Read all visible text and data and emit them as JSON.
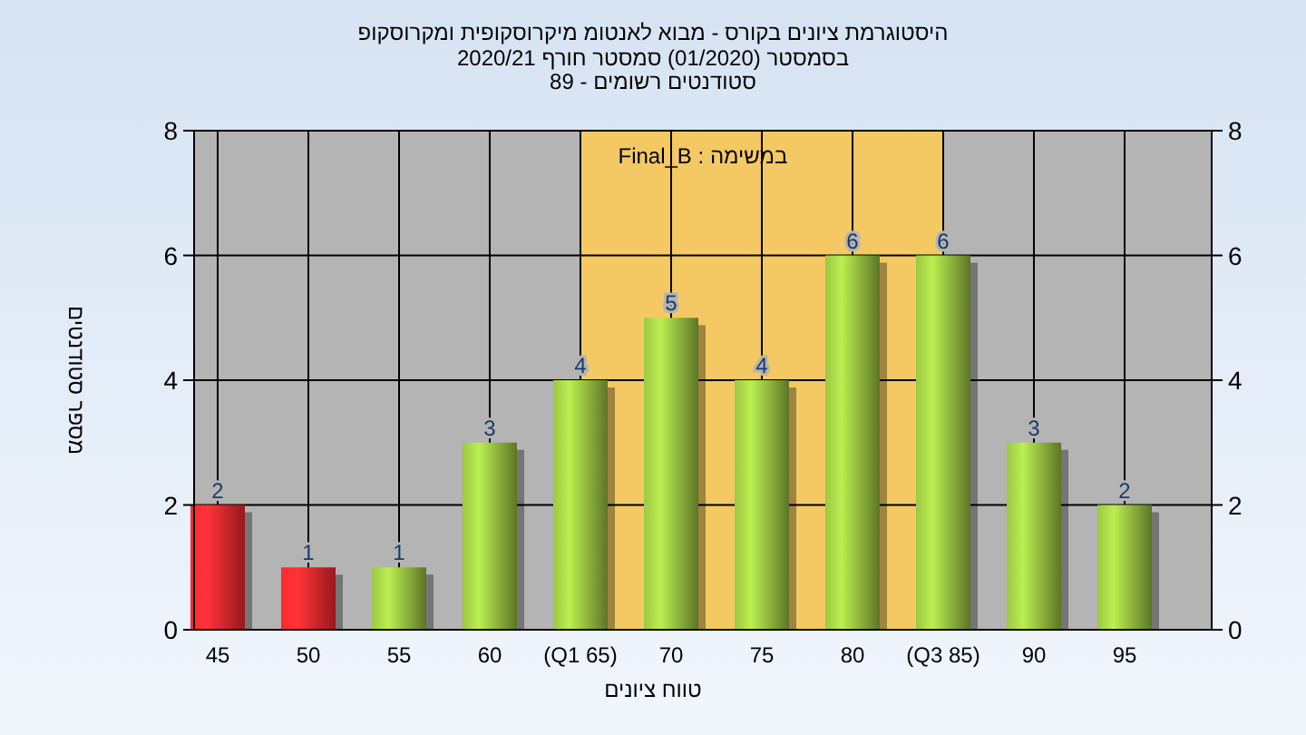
{
  "chart_data": {
    "type": "bar",
    "title": "היסטוגרמת ציונים בקורס - מבוא לאנטומ מיקרוסקופית ומקרוסקופ",
    "subtitle": "בסמסטר (01/2020) סמסטר חורף 2020/21\nסטודנטים רשומים - 89",
    "xlabel": "טווח ציונים",
    "ylabel": "מספר סטודנטים",
    "annotations": [
      "במשימה : Final_B"
    ],
    "categories": [
      "45",
      "50",
      "55",
      "60",
      "(Q1 65)",
      "70",
      "75",
      "80",
      "(Q3 85)",
      "90",
      "95"
    ],
    "series": [
      {
        "values": [
          2,
          1,
          1,
          3,
          4,
          5,
          4,
          6,
          6,
          3,
          2
        ],
        "colors": [
          "#e8262a",
          "#e8262a",
          "#8db43c",
          "#8db43c",
          "#8db43c",
          "#8db43c",
          "#8db43c",
          "#8db43c",
          "#8db43c",
          "#8db43c",
          "#8db43c"
        ]
      }
    ],
    "bands": [
      {
        "axis": "x",
        "from": "(Q1 65)",
        "to": "(Q3 85)",
        "color": "#ffcc55"
      }
    ],
    "data_labels": true,
    "ylim": [
      0,
      8
    ],
    "yticks": [
      0,
      2,
      4,
      6,
      8
    ],
    "y2lim": [
      0,
      8
    ],
    "y2ticks": [
      0,
      2,
      4,
      6,
      8
    ],
    "grid": true
  }
}
